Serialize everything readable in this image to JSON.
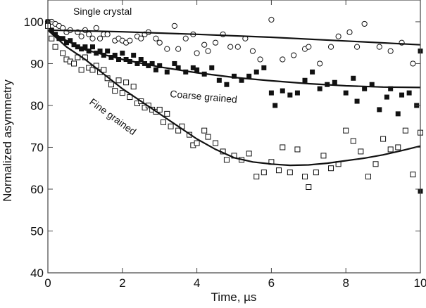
{
  "chart_data": {
    "type": "scatter",
    "title": "",
    "xlabel": "Time, µs",
    "ylabel": "Normalized asymmetry",
    "xlim": [
      0,
      10
    ],
    "ylim": [
      40,
      105.2
    ],
    "xticks": [
      "0",
      "2",
      "4",
      "6",
      "8",
      "10"
    ],
    "yticks": [
      "40",
      "50",
      "60",
      "70",
      "80",
      "90",
      "100"
    ],
    "grid": false,
    "series": [
      {
        "name": "Single crystal",
        "marker": "open-circle",
        "points": [
          [
            0,
            100
          ],
          [
            0.1,
            100
          ],
          [
            0.2,
            99.5
          ],
          [
            0.3,
            99
          ],
          [
            0.4,
            98.5
          ],
          [
            0.5,
            97.5
          ],
          [
            0.6,
            98
          ],
          [
            0.8,
            97.5
          ],
          [
            0.9,
            96.5
          ],
          [
            1.0,
            98
          ],
          [
            1.1,
            97
          ],
          [
            1.2,
            96
          ],
          [
            1.3,
            98.5
          ],
          [
            1.4,
            96
          ],
          [
            1.5,
            97
          ],
          [
            1.6,
            97
          ],
          [
            1.8,
            95.5
          ],
          [
            1.9,
            96
          ],
          [
            2.0,
            95.5
          ],
          [
            2.1,
            95
          ],
          [
            2.2,
            95.5
          ],
          [
            2.4,
            96.5
          ],
          [
            2.5,
            96
          ],
          [
            2.6,
            97
          ],
          [
            2.7,
            97.5
          ],
          [
            2.9,
            96
          ],
          [
            3.0,
            95
          ],
          [
            3.2,
            93.5
          ],
          [
            3.4,
            99
          ],
          [
            3.5,
            93.5
          ],
          [
            3.7,
            96
          ],
          [
            3.9,
            97
          ],
          [
            4.0,
            92.5
          ],
          [
            4.2,
            94.5
          ],
          [
            4.3,
            93
          ],
          [
            4.5,
            95
          ],
          [
            4.7,
            97
          ],
          [
            4.9,
            94
          ],
          [
            5.1,
            94
          ],
          [
            5.3,
            96
          ],
          [
            5.5,
            93
          ],
          [
            5.7,
            91
          ],
          [
            6.0,
            100.5
          ],
          [
            6.3,
            91
          ],
          [
            6.6,
            92
          ],
          [
            6.9,
            93.5
          ],
          [
            7.0,
            94
          ],
          [
            7.3,
            90
          ],
          [
            7.6,
            94
          ],
          [
            7.8,
            96.5
          ],
          [
            8.1,
            97.5
          ],
          [
            8.3,
            94
          ],
          [
            8.5,
            99.5
          ],
          [
            8.9,
            94
          ],
          [
            9.2,
            93
          ],
          [
            9.5,
            95
          ],
          [
            9.8,
            90
          ]
        ],
        "fit": [
          [
            0,
            98
          ],
          [
            2,
            97.6
          ],
          [
            4,
            97
          ],
          [
            6,
            96.3
          ],
          [
            8,
            95.4
          ],
          [
            10,
            94.5
          ]
        ]
      },
      {
        "name": "Coarse grained",
        "marker": "filled-square",
        "points": [
          [
            0,
            100
          ],
          [
            0.1,
            98
          ],
          [
            0.2,
            97
          ],
          [
            0.3,
            96
          ],
          [
            0.4,
            96
          ],
          [
            0.5,
            95
          ],
          [
            0.6,
            95.5
          ],
          [
            0.7,
            94.5
          ],
          [
            0.8,
            94
          ],
          [
            0.9,
            93.5
          ],
          [
            1.0,
            94
          ],
          [
            1.1,
            93
          ],
          [
            1.2,
            94
          ],
          [
            1.3,
            92.5
          ],
          [
            1.4,
            93
          ],
          [
            1.5,
            92
          ],
          [
            1.6,
            93
          ],
          [
            1.7,
            91.5
          ],
          [
            1.8,
            92
          ],
          [
            1.9,
            91
          ],
          [
            2.0,
            92.5
          ],
          [
            2.1,
            91
          ],
          [
            2.2,
            90.5
          ],
          [
            2.3,
            92
          ],
          [
            2.4,
            90
          ],
          [
            2.5,
            91
          ],
          [
            2.6,
            90
          ],
          [
            2.7,
            89.5
          ],
          [
            2.8,
            90
          ],
          [
            2.9,
            88.5
          ],
          [
            3.0,
            89.5
          ],
          [
            3.2,
            88
          ],
          [
            3.4,
            90
          ],
          [
            3.5,
            89
          ],
          [
            3.7,
            88
          ],
          [
            3.9,
            89
          ],
          [
            4.0,
            88.5
          ],
          [
            4.2,
            87.5
          ],
          [
            4.4,
            89
          ],
          [
            4.6,
            86
          ],
          [
            4.8,
            85
          ],
          [
            5.0,
            87
          ],
          [
            5.2,
            86
          ],
          [
            5.4,
            87
          ],
          [
            5.6,
            88
          ],
          [
            5.8,
            89
          ],
          [
            6.0,
            83
          ],
          [
            6.1,
            80
          ],
          [
            6.3,
            83.5
          ],
          [
            6.5,
            82.5
          ],
          [
            6.7,
            83
          ],
          [
            6.9,
            86
          ],
          [
            7.1,
            88
          ],
          [
            7.3,
            84
          ],
          [
            7.5,
            85
          ],
          [
            7.7,
            85.5
          ],
          [
            8.0,
            83
          ],
          [
            8.2,
            86.5
          ],
          [
            8.3,
            81
          ],
          [
            8.5,
            84
          ],
          [
            8.7,
            85
          ],
          [
            8.9,
            79
          ],
          [
            9.1,
            82
          ],
          [
            9.2,
            84
          ],
          [
            9.4,
            78
          ],
          [
            9.5,
            82.5
          ],
          [
            9.7,
            83
          ],
          [
            9.9,
            80
          ],
          [
            10,
            93
          ],
          [
            10,
            59.5
          ]
        ],
        "fit": [
          [
            0,
            98
          ],
          [
            0.5,
            95.5
          ],
          [
            1,
            93.3
          ],
          [
            2,
            91
          ],
          [
            3,
            89.2
          ],
          [
            4,
            87.8
          ],
          [
            5,
            86.7
          ],
          [
            6,
            85.9
          ],
          [
            7,
            85.2
          ],
          [
            8,
            84.7
          ],
          [
            9,
            84.4
          ],
          [
            10,
            84.3
          ]
        ]
      },
      {
        "name": "Fine grained",
        "marker": "open-square",
        "points": [
          [
            0,
            99
          ],
          [
            0.1,
            96
          ],
          [
            0.2,
            94
          ],
          [
            0.4,
            92.5
          ],
          [
            0.5,
            91
          ],
          [
            0.6,
            90.5
          ],
          [
            0.7,
            90
          ],
          [
            0.8,
            91.5
          ],
          [
            0.9,
            88.5
          ],
          [
            1.0,
            91.5
          ],
          [
            1.1,
            89
          ],
          [
            1.2,
            88.5
          ],
          [
            1.3,
            89.5
          ],
          [
            1.4,
            88
          ],
          [
            1.5,
            88.5
          ],
          [
            1.6,
            86.5
          ],
          [
            1.7,
            85
          ],
          [
            1.8,
            83.5
          ],
          [
            1.9,
            86
          ],
          [
            2.0,
            83
          ],
          [
            2.1,
            85.5
          ],
          [
            2.2,
            82
          ],
          [
            2.3,
            84.5
          ],
          [
            2.4,
            80.5
          ],
          [
            2.5,
            81
          ],
          [
            2.6,
            79.5
          ],
          [
            2.7,
            80
          ],
          [
            2.8,
            79
          ],
          [
            2.9,
            78.5
          ],
          [
            3.0,
            79
          ],
          [
            3.1,
            76
          ],
          [
            3.2,
            78
          ],
          [
            3.3,
            75
          ],
          [
            3.5,
            74
          ],
          [
            3.6,
            75
          ],
          [
            3.8,
            73
          ],
          [
            3.9,
            70.5
          ],
          [
            4.0,
            71
          ],
          [
            4.2,
            74
          ],
          [
            4.3,
            72.5
          ],
          [
            4.5,
            71
          ],
          [
            4.7,
            69
          ],
          [
            4.8,
            67
          ],
          [
            5.0,
            68
          ],
          [
            5.2,
            67
          ],
          [
            5.4,
            68.5
          ],
          [
            5.6,
            63
          ],
          [
            5.8,
            64
          ],
          [
            6.0,
            66.5
          ],
          [
            6.2,
            64.5
          ],
          [
            6.3,
            70
          ],
          [
            6.5,
            64
          ],
          [
            6.7,
            69.5
          ],
          [
            6.9,
            63
          ],
          [
            7.0,
            60.5
          ],
          [
            7.2,
            64
          ],
          [
            7.4,
            68
          ],
          [
            7.6,
            65
          ],
          [
            7.8,
            66
          ],
          [
            8.0,
            74
          ],
          [
            8.2,
            71.5
          ],
          [
            8.4,
            69
          ],
          [
            8.6,
            63
          ],
          [
            8.8,
            66
          ],
          [
            9.0,
            72
          ],
          [
            9.2,
            69.5
          ],
          [
            9.4,
            70
          ],
          [
            9.6,
            74
          ],
          [
            9.8,
            63.5
          ],
          [
            10,
            73.5
          ]
        ],
        "fit": [
          [
            0,
            98
          ],
          [
            0.5,
            94
          ],
          [
            1,
            91
          ],
          [
            1.5,
            87.5
          ],
          [
            2,
            84
          ],
          [
            2.5,
            81
          ],
          [
            3,
            78
          ],
          [
            3.5,
            75
          ],
          [
            4,
            72
          ],
          [
            4.5,
            69.5
          ],
          [
            5,
            67.5
          ],
          [
            5.5,
            66.5
          ],
          [
            6,
            66
          ],
          [
            6.5,
            65.7
          ],
          [
            7,
            65.8
          ],
          [
            7.5,
            66.2
          ],
          [
            8,
            66.8
          ],
          [
            8.5,
            67.4
          ],
          [
            9,
            68.2
          ],
          [
            9.5,
            69.2
          ],
          [
            10,
            70.3
          ]
        ]
      }
    ],
    "annotations": [
      "Single crystal",
      "Coarse grained",
      "Fine grained"
    ]
  }
}
